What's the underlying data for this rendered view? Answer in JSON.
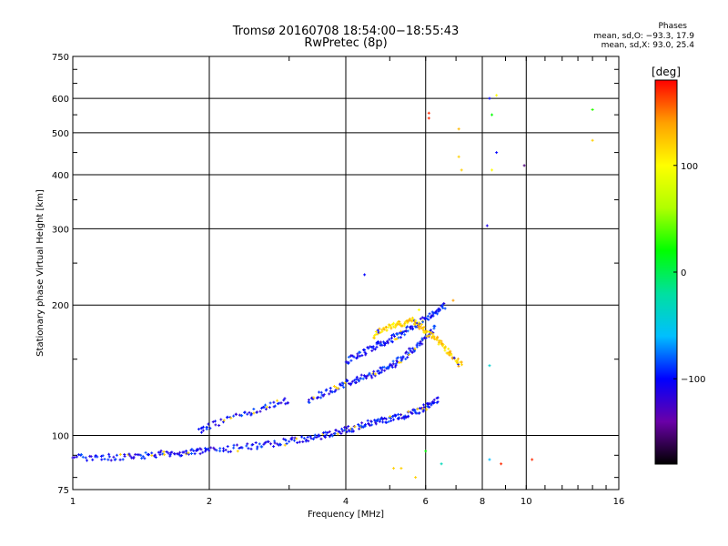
{
  "header": {
    "title_line1": "Tromsø 20160708 18:54:00−18:55:43",
    "title_line2": "RwPretec (8p)",
    "phases_title": "Phases",
    "phases_o": "mean, sd,O: −93.3, 17.9",
    "phases_x": "mean, sd,X:  93.0, 25.4"
  },
  "chart_data": {
    "type": "scatter",
    "xlabel": "Frequency [MHz]",
    "ylabel": "Stationary phase Virtual Height [km]",
    "x_scale": "log",
    "y_scale": "log",
    "xlim": [
      1,
      16
    ],
    "ylim": [
      75,
      750
    ],
    "x_ticks": [
      1,
      2,
      4,
      6,
      8,
      10,
      16
    ],
    "x_tick_labels": [
      "1",
      "2",
      "4",
      "6",
      "8",
      "10",
      "16"
    ],
    "y_ticks": [
      75,
      100,
      200,
      300,
      400,
      500,
      600,
      750
    ],
    "y_tick_labels": [
      "75",
      "100",
      "200",
      "300",
      "400",
      "500",
      "600",
      "750"
    ],
    "grid": true,
    "colorbar": {
      "label": "[deg]",
      "range": [
        -180,
        180
      ],
      "ticks": [
        100,
        0,
        -100
      ],
      "tick_labels": [
        "100",
        "0",
        "−100"
      ],
      "colors": [
        "#000000",
        "#6a00a8",
        "#0000ff",
        "#00bfff",
        "#00e0a0",
        "#00ff00",
        "#b0ff00",
        "#ffff00",
        "#ffa000",
        "#ff0000"
      ]
    },
    "points_dense_bands": [
      {
        "name": "O-trace low",
        "x": [
          1.0,
          1.1,
          1.2,
          1.3,
          1.4,
          1.5,
          1.6,
          1.7,
          1.8,
          1.9,
          2.0,
          2.2,
          2.4,
          2.6,
          2.8,
          3.0,
          3.2,
          3.4,
          3.6,
          3.8,
          4.0,
          4.2,
          4.4,
          4.6,
          4.8,
          5.0,
          5.2,
          5.4,
          5.6,
          5.8,
          6.0,
          6.2,
          6.4
        ],
        "y": [
          89,
          89,
          89,
          89,
          90,
          90,
          91,
          91,
          91,
          92,
          93,
          93,
          94,
          95,
          96,
          97,
          98,
          99,
          100,
          102,
          103,
          104,
          106,
          107,
          108,
          109,
          110,
          111,
          113,
          114,
          116,
          118,
          121
        ],
        "phase": -100
      },
      {
        "name": "Upper trace A",
        "x": [
          1.9,
          2.0,
          2.2,
          2.4,
          2.6,
          2.8,
          3.0
        ],
        "y": [
          103,
          105,
          109,
          112,
          115,
          118,
          121
        ],
        "phase": -100
      },
      {
        "name": "Upper trace B",
        "x": [
          3.3,
          3.5,
          3.7,
          3.9,
          4.1,
          4.3,
          4.5,
          4.7,
          4.9,
          5.1,
          5.3,
          5.5,
          5.7,
          5.9,
          6.1,
          6.3
        ],
        "y": [
          120,
          124,
          127,
          130,
          133,
          135,
          137,
          140,
          143,
          146,
          150,
          155,
          160,
          166,
          172,
          178
        ],
        "phase": -100
      },
      {
        "name": "Upper trace C",
        "x": [
          4.0,
          4.2,
          4.4,
          4.6,
          4.8,
          5.0,
          5.2,
          5.4,
          5.6,
          5.8,
          6.0,
          6.2,
          6.4,
          6.6
        ],
        "y": [
          148,
          152,
          156,
          160,
          163,
          166,
          170,
          174,
          178,
          182,
          186,
          190,
          195,
          200
        ],
        "phase": -100
      },
      {
        "name": "X-trace",
        "x": [
          4.6,
          4.8,
          5.0,
          5.2,
          5.4,
          5.6,
          5.8,
          6.0,
          6.2,
          6.4,
          6.6,
          6.8,
          7.0,
          7.2
        ],
        "y": [
          170,
          175,
          178,
          180,
          182,
          184,
          180,
          175,
          170,
          165,
          160,
          155,
          150,
          145
        ],
        "phase": 120
      }
    ],
    "points_scattered": [
      {
        "x": 6.1,
        "y": 555,
        "phase": 170
      },
      {
        "x": 6.1,
        "y": 540,
        "phase": 170
      },
      {
        "x": 7.1,
        "y": 510,
        "phase": 130
      },
      {
        "x": 7.1,
        "y": 440,
        "phase": 120
      },
      {
        "x": 7.2,
        "y": 410,
        "phase": 120
      },
      {
        "x": 8.3,
        "y": 600,
        "phase": -100
      },
      {
        "x": 8.4,
        "y": 550,
        "phase": 20
      },
      {
        "x": 8.6,
        "y": 610,
        "phase": 100
      },
      {
        "x": 8.6,
        "y": 450,
        "phase": -100
      },
      {
        "x": 8.4,
        "y": 410,
        "phase": 100
      },
      {
        "x": 9.9,
        "y": 420,
        "phase": -150
      },
      {
        "x": 8.2,
        "y": 305,
        "phase": -110
      },
      {
        "x": 14.0,
        "y": 565,
        "phase": 30
      },
      {
        "x": 14.0,
        "y": 480,
        "phase": 120
      },
      {
        "x": 4.4,
        "y": 235,
        "phase": -100
      },
      {
        "x": 5.8,
        "y": 195,
        "phase": 100
      },
      {
        "x": 6.9,
        "y": 205,
        "phase": 140
      },
      {
        "x": 8.3,
        "y": 145,
        "phase": -40
      },
      {
        "x": 10.3,
        "y": 88,
        "phase": 170
      },
      {
        "x": 8.3,
        "y": 88,
        "phase": -60
      },
      {
        "x": 8.8,
        "y": 86,
        "phase": 170
      },
      {
        "x": 5.1,
        "y": 84,
        "phase": 120
      },
      {
        "x": 5.3,
        "y": 84,
        "phase": 120
      },
      {
        "x": 5.7,
        "y": 80,
        "phase": 120
      },
      {
        "x": 6.0,
        "y": 92,
        "phase": 20
      },
      {
        "x": 6.5,
        "y": 86,
        "phase": -30
      }
    ]
  }
}
